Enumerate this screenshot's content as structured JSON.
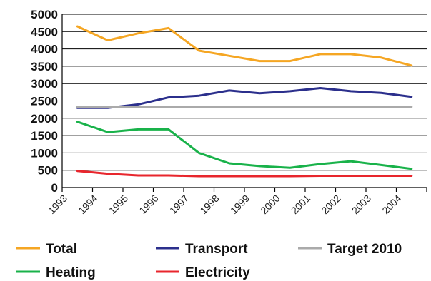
{
  "chart_data": {
    "type": "line",
    "title": "",
    "xlabel": "",
    "ylabel": "",
    "categories": [
      "1993",
      "1994",
      "1995",
      "1996",
      "1997",
      "1998",
      "1999",
      "2000",
      "2001",
      "2002",
      "2003",
      "2004"
    ],
    "ylim": [
      0,
      5000
    ],
    "yticks": [
      "0",
      "500",
      "1000",
      "1500",
      "2000",
      "2500",
      "3000",
      "3500",
      "4000",
      "4500",
      "5000"
    ],
    "grid": true,
    "legend_position": "bottom",
    "series": [
      {
        "name": "Total",
        "color": "#F5A623",
        "values": [
          4650,
          4250,
          4450,
          4600,
          3950,
          3800,
          3650,
          3650,
          3850,
          3850,
          3750,
          3520
        ]
      },
      {
        "name": "Transport",
        "color": "#2B2F8C",
        "values": [
          2300,
          2300,
          2400,
          2600,
          2650,
          2800,
          2720,
          2780,
          2870,
          2780,
          2730,
          2620
        ]
      },
      {
        "name": "Target 2010",
        "color": "#AAAAAA",
        "values": [
          2330,
          2330,
          2330,
          2330,
          2330,
          2330,
          2330,
          2330,
          2330,
          2330,
          2330,
          2330
        ]
      },
      {
        "name": "Heating",
        "color": "#19B24A",
        "values": [
          1900,
          1600,
          1680,
          1680,
          1000,
          700,
          620,
          570,
          680,
          760,
          650,
          540
        ]
      },
      {
        "name": "Electricity",
        "color": "#E8262D",
        "values": [
          480,
          400,
          350,
          350,
          330,
          330,
          330,
          330,
          340,
          340,
          340,
          340
        ]
      }
    ]
  }
}
